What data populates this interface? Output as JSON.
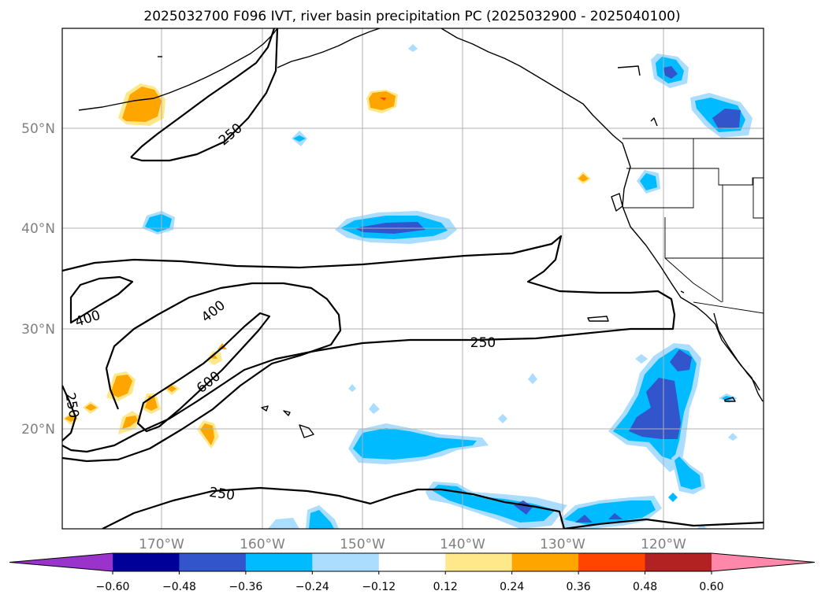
{
  "title": "2025032700 F096 IVT, river basin precipitation PC (2025032900 - 2025040100)",
  "map": {
    "lon_ticks": [
      "170°W",
      "160°W",
      "150°W",
      "140°W",
      "130°W",
      "120°W"
    ],
    "lat_ticks": [
      "50°N",
      "40°N",
      "30°N",
      "20°N"
    ],
    "gridlines": true
  },
  "contour_labels": [
    "250",
    "400",
    "400",
    "250",
    "600",
    "250",
    "250"
  ],
  "colorbar": {
    "levels": [
      "−0.60",
      "−0.48",
      "−0.36",
      "−0.24",
      "−0.12",
      "0.12",
      "0.24",
      "0.36",
      "0.48",
      "0.60"
    ],
    "colors": [
      "#9933cc",
      "#000099",
      "#3355cc",
      "#00bbff",
      "#aaddff",
      "#ffffff",
      "#ffe88a",
      "#ffa500",
      "#ff4500",
      "#b22222",
      "#ff88aa"
    ],
    "extend": "both"
  }
}
